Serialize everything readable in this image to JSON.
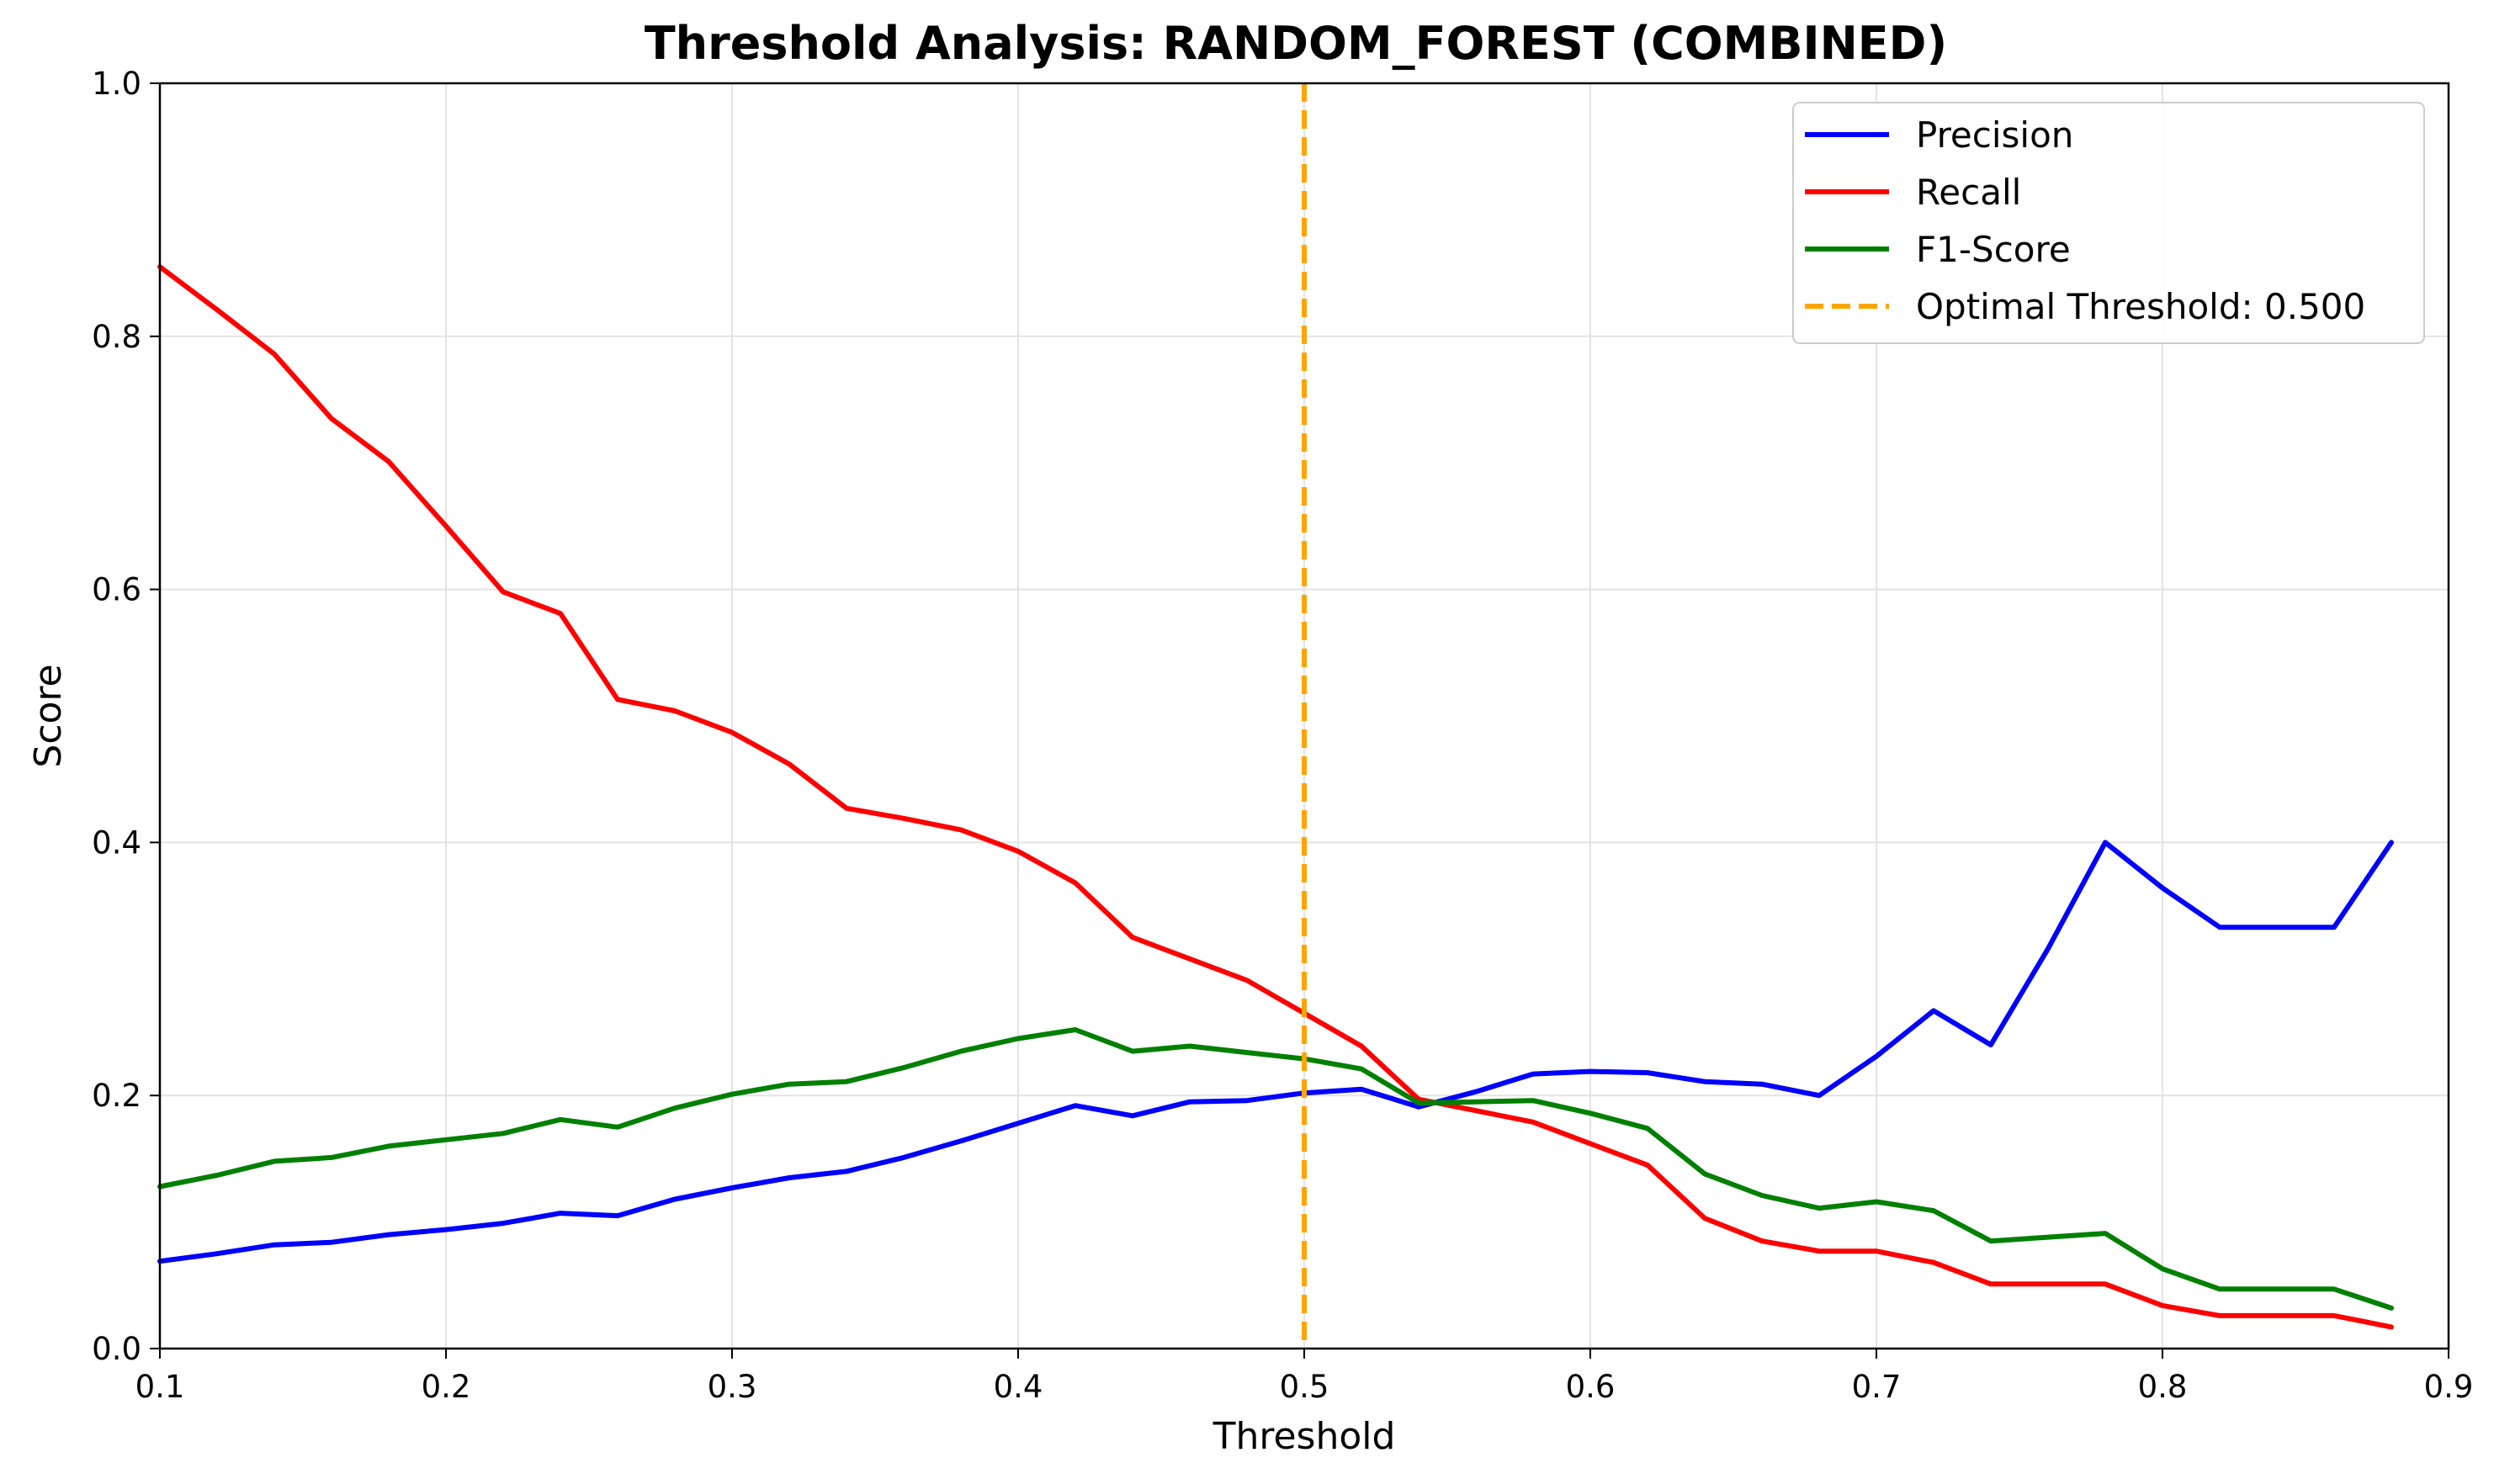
{
  "chart_data": {
    "type": "line",
    "title": "Threshold Analysis: RANDOM_FOREST (COMBINED)",
    "xlabel": "Threshold",
    "ylabel": "Score",
    "xlim": [
      0.1,
      0.9
    ],
    "ylim": [
      0.0,
      1.0
    ],
    "x_ticks": [
      "0.1",
      "0.2",
      "0.3",
      "0.4",
      "0.5",
      "0.6",
      "0.7",
      "0.8",
      "0.9"
    ],
    "y_ticks": [
      "0.0",
      "0.2",
      "0.4",
      "0.6",
      "0.8",
      "1.0"
    ],
    "grid": true,
    "legend_position": "top-right",
    "x": [
      0.1,
      0.12,
      0.14,
      0.16,
      0.18,
      0.2,
      0.22,
      0.24,
      0.26,
      0.28,
      0.3,
      0.32,
      0.34,
      0.36,
      0.38,
      0.4,
      0.42,
      0.44,
      0.46,
      0.48,
      0.5,
      0.52,
      0.54,
      0.56,
      0.58,
      0.6,
      0.62,
      0.64,
      0.66,
      0.68,
      0.7,
      0.72,
      0.74,
      0.76,
      0.78,
      0.8,
      0.82,
      0.84,
      0.86,
      0.88
    ],
    "series": [
      {
        "name": "Precision",
        "color": "#0000ff",
        "style": "solid",
        "values": [
          0.069,
          0.075,
          0.082,
          0.084,
          0.09,
          0.094,
          0.099,
          0.107,
          0.105,
          0.118,
          0.127,
          0.135,
          0.14,
          0.151,
          0.164,
          0.178,
          0.192,
          0.184,
          0.195,
          0.196,
          0.202,
          0.205,
          0.191,
          0.203,
          0.217,
          0.219,
          0.218,
          0.211,
          0.209,
          0.2,
          0.231,
          0.267,
          0.24,
          0.316,
          0.4,
          0.364,
          0.333,
          0.333,
          0.333,
          0.4
        ]
      },
      {
        "name": "Recall",
        "color": "#ff0000",
        "style": "solid",
        "values": [
          0.855,
          0.821,
          0.786,
          0.735,
          0.701,
          0.65,
          0.598,
          0.581,
          0.513,
          0.504,
          0.487,
          0.462,
          0.427,
          0.419,
          0.41,
          0.393,
          0.368,
          0.325,
          0.308,
          0.291,
          0.265,
          0.239,
          0.197,
          0.188,
          0.179,
          0.162,
          0.145,
          0.103,
          0.085,
          0.077,
          0.077,
          0.068,
          0.051,
          0.051,
          0.051,
          0.034,
          0.026,
          0.026,
          0.026,
          0.017
        ]
      },
      {
        "name": "F1-Score",
        "color": "#008000",
        "style": "solid",
        "values": [
          0.128,
          0.137,
          0.148,
          0.151,
          0.16,
          0.165,
          0.17,
          0.181,
          0.175,
          0.19,
          0.201,
          0.209,
          0.211,
          0.222,
          0.235,
          0.245,
          0.252,
          0.235,
          0.239,
          0.234,
          0.229,
          0.221,
          0.194,
          0.195,
          0.196,
          0.186,
          0.174,
          0.138,
          0.121,
          0.111,
          0.116,
          0.109,
          0.085,
          0.088,
          0.091,
          0.063,
          0.047,
          0.047,
          0.047,
          0.032
        ]
      }
    ],
    "reference_line": {
      "name": "Optimal Threshold: 0.500",
      "x": 0.5,
      "color": "#ffa500",
      "style": "dashed"
    }
  }
}
